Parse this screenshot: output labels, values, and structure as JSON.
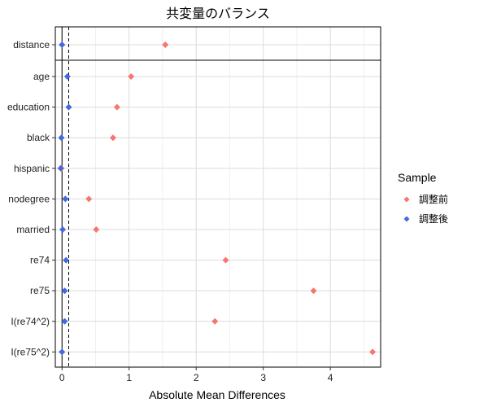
{
  "chart_data": {
    "type": "scatter",
    "title": "共変量のバランス",
    "xlabel": "Absolute Mean Differences",
    "ylabel": "",
    "xlim": [
      -0.1,
      4.75
    ],
    "xticks": [
      0,
      1,
      2,
      3,
      4
    ],
    "reference_lines": [
      {
        "x": 0,
        "style": "solid"
      },
      {
        "x": 0.1,
        "style": "dashed"
      }
    ],
    "grid": true,
    "legend_position": "right",
    "legend_title": "Sample",
    "categories": [
      "distance",
      "age",
      "education",
      "black",
      "hispanic",
      "nodegree",
      "married",
      "re74",
      "re75",
      "I(re74^2)",
      "I(re75^2)"
    ],
    "separator_after": "distance",
    "series": [
      {
        "name": "調整前",
        "color": "#F8766D",
        "marker": "diamond",
        "values": [
          1.54,
          1.03,
          0.82,
          0.76,
          -0.01,
          0.4,
          0.51,
          2.44,
          3.75,
          2.28,
          4.63
        ]
      },
      {
        "name": "調整後",
        "color": "#4169E1",
        "marker": "diamond",
        "values": [
          0.0,
          0.08,
          0.1,
          -0.01,
          -0.02,
          0.05,
          0.01,
          0.06,
          0.04,
          0.04,
          0.0
        ]
      }
    ]
  }
}
